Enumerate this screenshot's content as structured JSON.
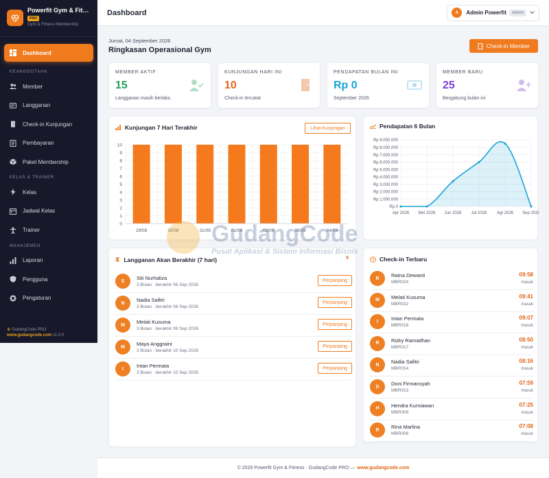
{
  "brand": {
    "name": "Powerfit Gym & Fitness",
    "badge": "PRO",
    "subtitle": "Gym & Fitness Membership"
  },
  "sidebar": {
    "active": {
      "label": "Dashboard",
      "icon": "dashboard-icon"
    },
    "sections": [
      {
        "title": "KEANGGOTAAN",
        "items": [
          {
            "label": "Member",
            "icon": "users-icon"
          },
          {
            "label": "Langganan",
            "icon": "card-icon"
          },
          {
            "label": "Check-in Kunjungan",
            "icon": "door-icon"
          },
          {
            "label": "Pembayaran",
            "icon": "receipt-icon"
          },
          {
            "label": "Paket Membership",
            "icon": "box-icon"
          }
        ]
      },
      {
        "title": "KELAS & TRAINER",
        "items": [
          {
            "label": "Kelas",
            "icon": "bolt-icon"
          },
          {
            "label": "Jadwal Kelas",
            "icon": "calendar-icon"
          },
          {
            "label": "Trainer",
            "icon": "trainer-icon"
          }
        ]
      },
      {
        "title": "MANAJEMEN",
        "items": [
          {
            "label": "Laporan",
            "icon": "bar-chart-icon"
          },
          {
            "label": "Pengguna",
            "icon": "shield-icon"
          },
          {
            "label": "Pengaturan",
            "icon": "gear-icon"
          }
        ]
      }
    ],
    "footer": {
      "line1": "GudangCode PRO",
      "site": "www.gudangcode.com",
      "version": "v1.0.0"
    }
  },
  "topbar": {
    "title": "Dashboard",
    "user": {
      "initial": "A",
      "name": "Admin Powerfit",
      "role": "Admin"
    }
  },
  "page": {
    "date": "Jumat, 04 September 2026",
    "heading": "Ringkasan Operasional Gym",
    "checkin_button": "Check-in Member"
  },
  "stats": [
    {
      "label": "MEMBER AKTIF",
      "value": "15",
      "sub": "Langganan masih berlaku",
      "color": "#1fa05a",
      "icon": "user-check-icon"
    },
    {
      "label": "KUNJUNGAN HARI INI",
      "value": "10",
      "sub": "Check-in tercatat",
      "color": "#e0641a",
      "icon": "door-icon"
    },
    {
      "label": "PENDAPATAN BULAN INI",
      "value": "Rp 0",
      "sub": "September 2026",
      "color": "#1aa3d6",
      "icon": "money-icon"
    },
    {
      "label": "MEMBER BARU",
      "value": "25",
      "sub": "Bergabung bulan ini",
      "color": "#7b3fd8",
      "icon": "user-plus-icon"
    }
  ],
  "visits_card": {
    "title": "Kunjungan 7 Hari Terakhir",
    "button": "Lihat Kunjungan"
  },
  "revenue_card": {
    "title": "Pendapatan 6 Bulan"
  },
  "expiring": {
    "title": "Langganan Akan Berakhir (7 hari)",
    "count": "5",
    "button_label": "Perpanjang",
    "items": [
      {
        "initial": "S",
        "name": "Siti Nurhaliza",
        "sub": "3 Bulan · berakhir 06 Sep 2026"
      },
      {
        "initial": "N",
        "name": "Nadia Safitri",
        "sub": "3 Bulan · berakhir 06 Sep 2026"
      },
      {
        "initial": "M",
        "name": "Melati Kusuma",
        "sub": "3 Bulan · berakhir 08 Sep 2026"
      },
      {
        "initial": "M",
        "name": "Maya Anggraini",
        "sub": "3 Bulan · berakhir 10 Sep 2026"
      },
      {
        "initial": "I",
        "name": "Intan Permata",
        "sub": "3 Bulan · berakhir 10 Sep 2026"
      }
    ]
  },
  "checkins": {
    "title": "Check-in Terbaru",
    "items": [
      {
        "initial": "R",
        "name": "Ratna Dewanti",
        "id": "MBR024",
        "time": "09:58",
        "status": "masuk"
      },
      {
        "initial": "M",
        "name": "Melati Kusuma",
        "id": "MBR022",
        "time": "09:41",
        "status": "masuk"
      },
      {
        "initial": "I",
        "name": "Intan Permata",
        "id": "MBR018",
        "time": "09:07",
        "status": "masuk"
      },
      {
        "initial": "R",
        "name": "Rizky Ramadhan",
        "id": "MBR017",
        "time": "08:50",
        "status": "masuk"
      },
      {
        "initial": "N",
        "name": "Nadia Safitri",
        "id": "MBR014",
        "time": "08:16",
        "status": "masuk"
      },
      {
        "initial": "D",
        "name": "Doni Firmansyah",
        "id": "MBR013",
        "time": "07:59",
        "status": "masuk"
      },
      {
        "initial": "H",
        "name": "Hendra Kurniawan",
        "id": "MBR009",
        "time": "07:25",
        "status": "masuk"
      },
      {
        "initial": "R",
        "name": "Rina Marlina",
        "id": "MBR008",
        "time": "07:08",
        "status": "masuk"
      }
    ]
  },
  "footer": {
    "text": "© 2026 Powerfit Gym & Fitness · GudangCode PRO —",
    "link": "www.gudangcode.com"
  },
  "watermark": {
    "title": "GudangCode",
    "subtitle": "Pusat Aplikasi & Sistem Informasi Bisnis"
  },
  "colors": {
    "accent": "#f07a1e",
    "sidebar_bg": "#17192a",
    "area_line": "#1aa3d6"
  },
  "chart_data": [
    {
      "type": "bar",
      "title": "Kunjungan 7 Hari Terakhir",
      "categories": [
        "29/08",
        "30/08",
        "31/08",
        "01/09",
        "02/09",
        "03/09",
        "04/09"
      ],
      "values": [
        10,
        10,
        10,
        10,
        10,
        10,
        10
      ],
      "ylim": [
        0,
        10
      ],
      "yticks": [
        0,
        1,
        2,
        3,
        4,
        5,
        6,
        7,
        8,
        9,
        10
      ],
      "grid": true,
      "color": "#f57a1e"
    },
    {
      "type": "area",
      "title": "Pendapatan 6 Bulan",
      "categories": [
        "Apr 2026",
        "Mei 2026",
        "Jun 2026",
        "Jul 2026",
        "Agt 2026",
        "Sep 2026"
      ],
      "values": [
        0,
        0,
        3400000,
        6000000,
        8500000,
        0
      ],
      "ylim": [
        0,
        9000000
      ],
      "yticks": [
        "Rp 0",
        "Rp 1.000.000",
        "Rp 2.000.000",
        "Rp 3.000.000",
        "Rp 4.000.000",
        "Rp 5.000.000",
        "Rp 6.000.000",
        "Rp 7.000.000",
        "Rp 8.000.000",
        "Rp 9.000.000"
      ],
      "grid": true,
      "color": "#1aa3d6"
    }
  ]
}
